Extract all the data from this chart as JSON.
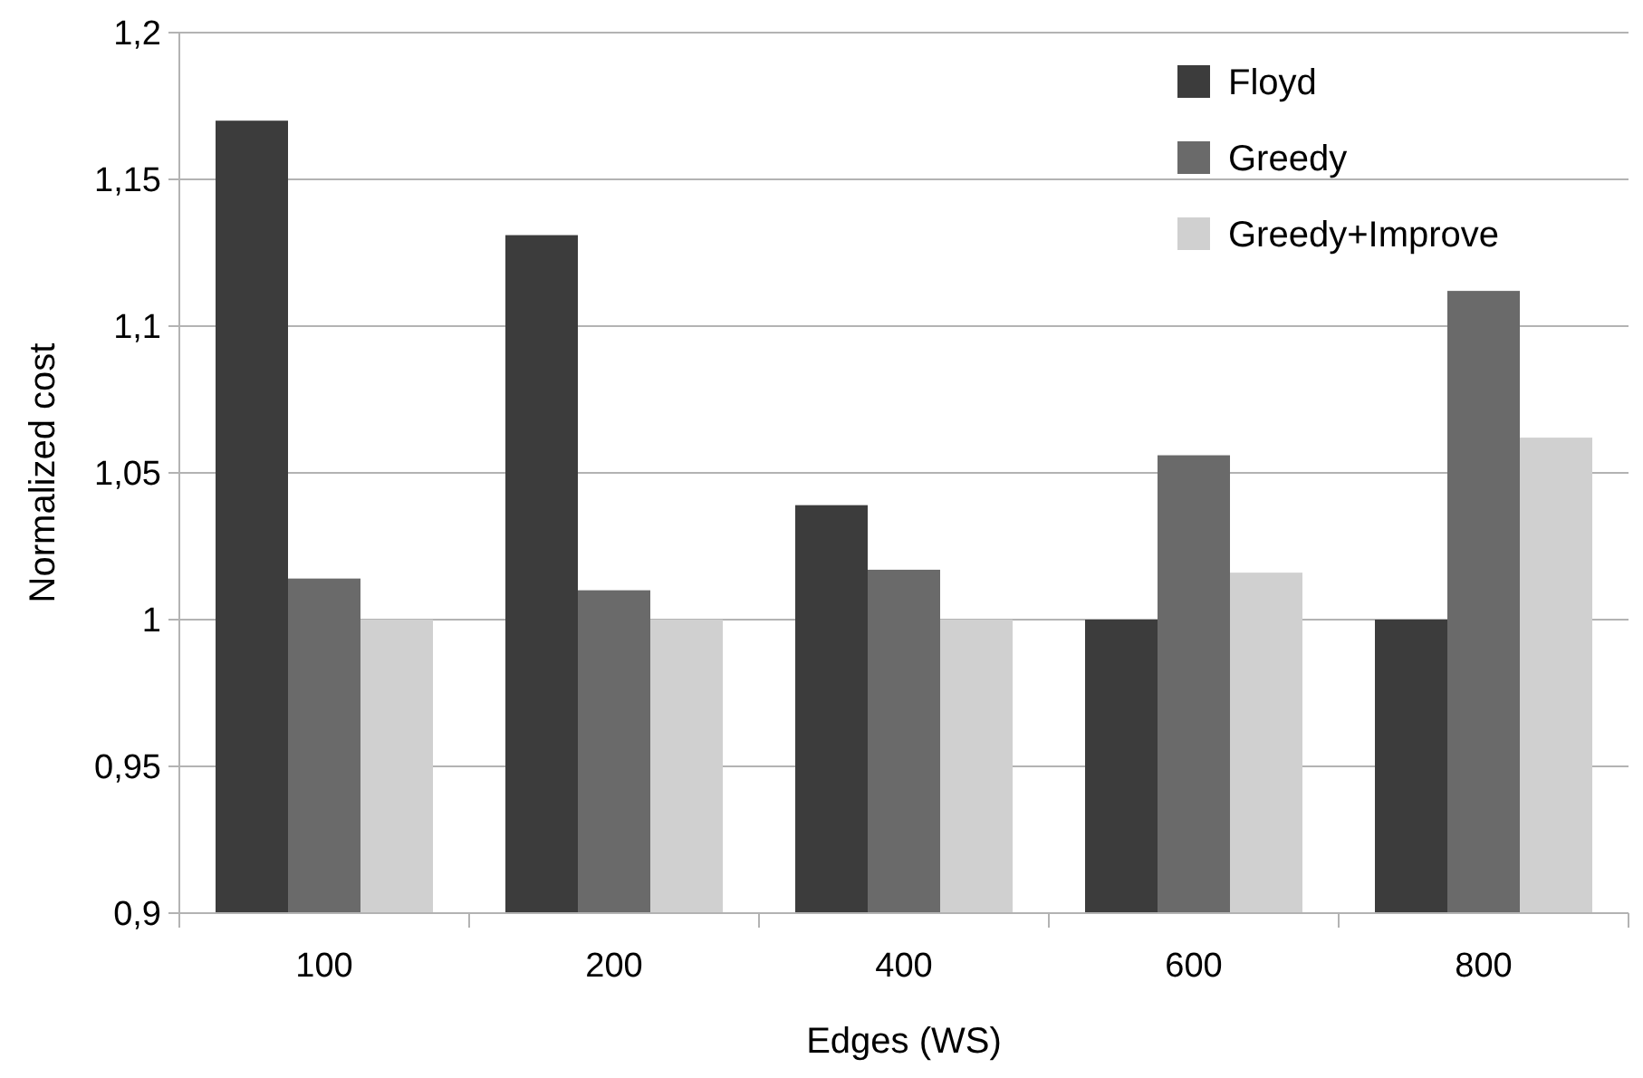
{
  "chart_data": {
    "type": "bar",
    "xlabel": "Edges (WS)",
    "ylabel": "Normalized cost",
    "categories": [
      "100",
      "200",
      "400",
      "600",
      "800"
    ],
    "series": [
      {
        "name": "Floyd",
        "color": "#3c3c3c",
        "values": [
          1.17,
          1.131,
          1.039,
          1.0,
          1.0
        ]
      },
      {
        "name": "Greedy",
        "color": "#6a6a6a",
        "values": [
          1.014,
          1.01,
          1.017,
          1.056,
          1.112
        ]
      },
      {
        "name": "Greedy+Improve",
        "color": "#d0d0d0",
        "values": [
          1.0,
          1.0,
          1.0,
          1.016,
          1.062
        ]
      }
    ],
    "ylim": [
      0.9,
      1.2
    ],
    "yticks": [
      {
        "value": 0.9,
        "label": "0,9"
      },
      {
        "value": 0.95,
        "label": "0,95"
      },
      {
        "value": 1,
        "label": "1"
      },
      {
        "value": 1.05,
        "label": "1,05"
      },
      {
        "value": 1.1,
        "label": "1,1"
      },
      {
        "value": 1.15,
        "label": "1,15"
      },
      {
        "value": 1.2,
        "label": "1,2"
      }
    ],
    "grid": "y",
    "legend": "top right"
  }
}
